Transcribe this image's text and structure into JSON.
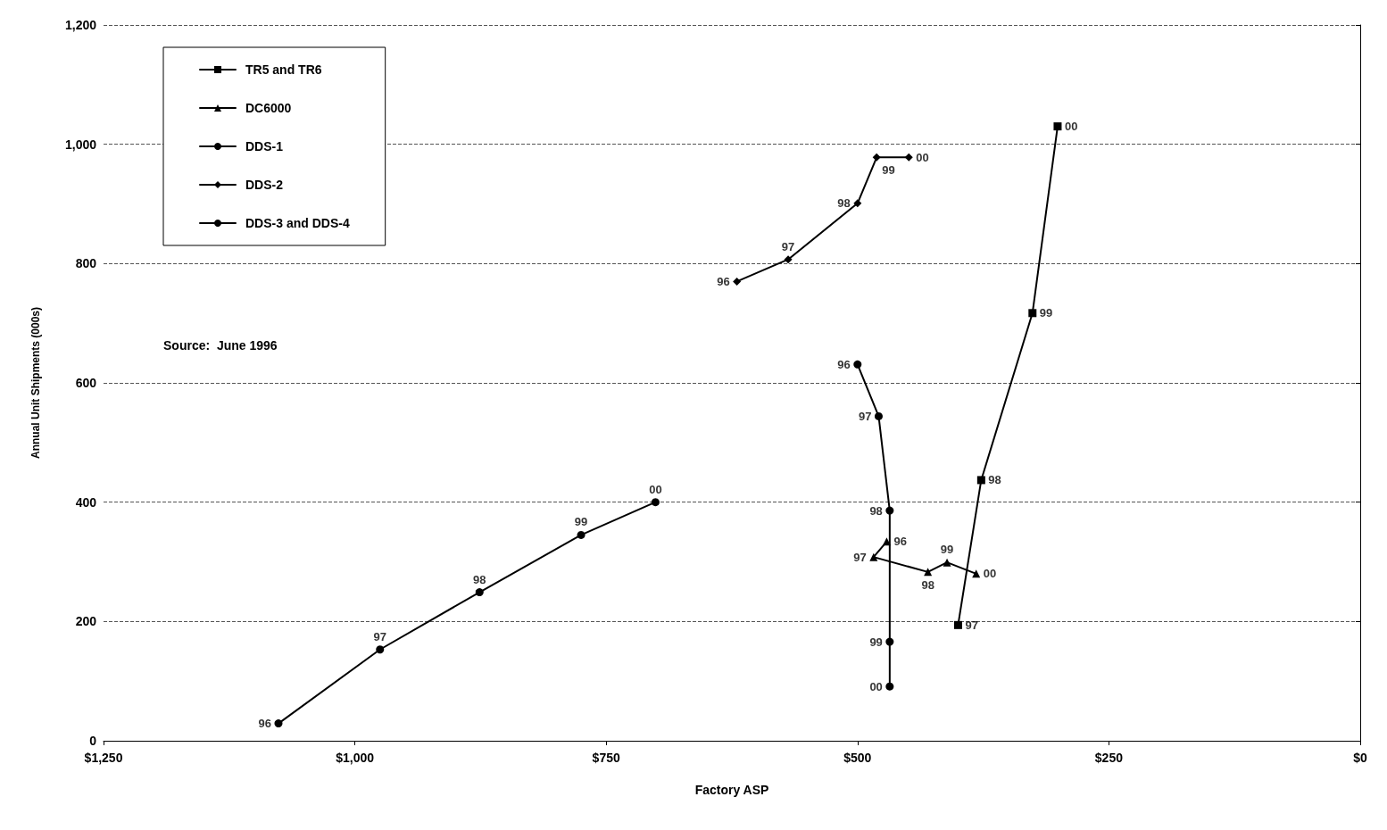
{
  "chart_data": {
    "type": "line",
    "xlabel": "Factory ASP",
    "ylabel": "Annual Unit Shipments (000s)",
    "xlim": [
      1250,
      0
    ],
    "xticks": [
      {
        "value": 1250,
        "label": "$1,250"
      },
      {
        "value": 1000,
        "label": "$1,000"
      },
      {
        "value": 750,
        "label": "$750"
      },
      {
        "value": 500,
        "label": "$500"
      },
      {
        "value": 250,
        "label": "$250"
      },
      {
        "value": 0,
        "label": "$0"
      }
    ],
    "ylim": [
      0,
      1200
    ],
    "yticks": [
      0,
      200,
      400,
      600,
      800,
      {
        "value": 1000,
        "label": "1,000"
      },
      {
        "value": 1200,
        "label": "1,200"
      }
    ],
    "grid": "y",
    "legend": "top left",
    "line_style": "solid",
    "series": [
      {
        "name": "TR5 and TR6",
        "color": "#000000",
        "marker": "square",
        "x": [
          400,
          377,
          326,
          301
        ],
        "values": [
          194,
          437,
          717,
          1030
        ]
      },
      {
        "name": "DC6000",
        "color": "#000000",
        "marker": "triangle",
        "x": [
          471,
          484,
          430,
          411,
          382
        ],
        "values": [
          334,
          308,
          283,
          299,
          280
        ]
      },
      {
        "name": "DDS-1",
        "color": "#000000",
        "marker": "circle",
        "x": [
          500,
          479,
          468,
          468,
          468
        ],
        "values": [
          631,
          544,
          386,
          166,
          91
        ]
      },
      {
        "name": "DDS-2",
        "color": "#000000",
        "marker": "diamond",
        "x": [
          620,
          569,
          500,
          481,
          449
        ],
        "values": [
          770,
          807,
          901,
          978,
          978
        ]
      },
      {
        "name": "DDS-3 and DDS-4",
        "color": "#000000",
        "marker": "circle",
        "x": [
          1076,
          975,
          876,
          775,
          701
        ],
        "values": [
          29,
          153,
          249,
          345,
          400
        ]
      }
    ],
    "annotations": [
      "Source:  June 1996",
      {
        "text": "97",
        "x": 400,
        "y": 194
      },
      {
        "text": "98",
        "x": 377,
        "y": 437
      },
      {
        "text": "99",
        "x": 326,
        "y": 717
      },
      {
        "text": "00",
        "x": 301,
        "y": 1030
      },
      {
        "text": "96",
        "x": 471,
        "y": 334
      },
      {
        "text": "97",
        "x": 484,
        "y": 308
      },
      {
        "text": "98",
        "x": 430,
        "y": 283
      },
      {
        "text": "99",
        "x": 411,
        "y": 299
      },
      {
        "text": "00",
        "x": 382,
        "y": 280
      },
      {
        "text": "96",
        "x": 500,
        "y": 631
      },
      {
        "text": "97",
        "x": 479,
        "y": 544
      },
      {
        "text": "98",
        "x": 468,
        "y": 386
      },
      {
        "text": "99",
        "x": 468,
        "y": 166
      },
      {
        "text": "00",
        "x": 468,
        "y": 91
      },
      {
        "text": "96",
        "x": 620,
        "y": 770
      },
      {
        "text": "97",
        "x": 569,
        "y": 807
      },
      {
        "text": "98",
        "x": 500,
        "y": 901
      },
      {
        "text": "99",
        "x": 481,
        "y": 978
      },
      {
        "text": "00",
        "x": 449,
        "y": 978
      },
      {
        "text": "96",
        "x": 1076,
        "y": 29
      },
      {
        "text": "97",
        "x": 975,
        "y": 153
      },
      {
        "text": "98",
        "x": 876,
        "y": 249
      },
      {
        "text": "99",
        "x": 775,
        "y": 345
      },
      {
        "text": "00",
        "x": 701,
        "y": 400
      }
    ]
  }
}
